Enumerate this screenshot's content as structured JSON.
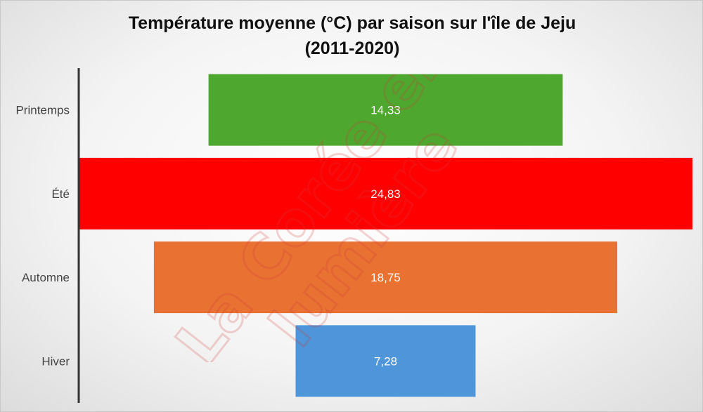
{
  "chart_data": {
    "type": "bar",
    "orientation": "horizontal",
    "layout": "centered-funnel",
    "title_line1": "Température moyenne (°C) par saison sur l'île de Jeju",
    "title_line2": "(2011-2020)",
    "categories": [
      "Printemps",
      "Été",
      "Automne",
      "Hiver"
    ],
    "values": [
      14.33,
      24.83,
      18.75,
      7.28
    ],
    "value_labels": [
      "14,33",
      "24,83",
      "18,75",
      "7,28"
    ],
    "colors": [
      "#4ea72e",
      "#ff0000",
      "#e97132",
      "#4e95d9"
    ],
    "xlabel": "",
    "ylabel": "",
    "grid": false,
    "legend": "none"
  },
  "watermark": {
    "line1": "La Corée en",
    "line2": "lumière"
  }
}
